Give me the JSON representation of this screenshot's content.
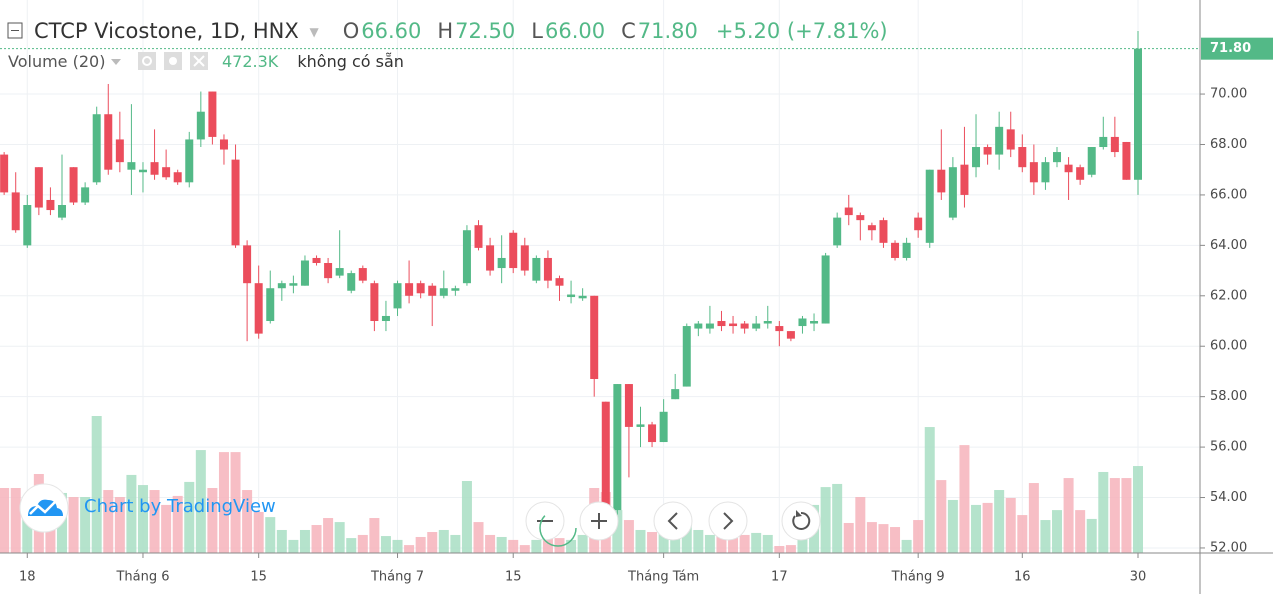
{
  "chart_data": {
    "type": "candlestick",
    "title": "CTCP Vicostone, 1D, HNX",
    "ohlc": [
      {
        "key": "O",
        "value": "66.60"
      },
      {
        "key": "H",
        "value": "72.50"
      },
      {
        "key": "L",
        "value": "66.00"
      },
      {
        "key": "C",
        "value": "71.80"
      }
    ],
    "change": "+5.20 (+7.81%)",
    "volume_name": "Volume (20)",
    "volume_last_label": "472.3K",
    "volume_note": "không có sẵn",
    "watermark": "Chart by TradingView",
    "up_color": "#53b987",
    "down_color": "#eb4d5c",
    "volume_up_color": "#a8dec3",
    "volume_down_color": "#f6b3bb",
    "grid": true,
    "categories": [
      null,
      null,
      "18",
      null,
      null,
      null,
      null,
      null,
      null,
      null,
      null,
      null,
      "Tháng 6",
      null,
      null,
      null,
      null,
      null,
      null,
      null,
      null,
      null,
      "15",
      null,
      null,
      null,
      null,
      null,
      null,
      null,
      null,
      null,
      null,
      null,
      "Tháng 7",
      null,
      null,
      null,
      null,
      null,
      null,
      null,
      null,
      null,
      "15",
      null,
      null,
      null,
      null,
      null,
      null,
      null,
      null,
      null,
      null,
      null,
      null,
      "Tháng Tám",
      null,
      null,
      null,
      null,
      null,
      null,
      null,
      null,
      null,
      "17",
      null,
      null,
      null,
      null,
      null,
      null,
      null,
      null,
      null,
      null,
      null,
      "Tháng 9",
      null,
      null,
      null,
      null,
      null,
      null,
      null,
      null,
      "16",
      null,
      null,
      null,
      null,
      null,
      null,
      null,
      null,
      null,
      "30"
    ],
    "open": [
      67.6,
      66.1,
      64.0,
      67.1,
      65.8,
      65.1,
      67.1,
      65.7,
      66.5,
      69.2,
      68.2,
      67.0,
      66.9,
      67.3,
      67.1,
      66.9,
      66.5,
      68.2,
      70.1,
      68.2,
      67.4,
      64.0,
      62.5,
      61.0,
      62.3,
      62.4,
      62.4,
      63.5,
      63.3,
      62.8,
      62.2,
      63.1,
      62.5,
      61.0,
      61.5,
      62.5,
      62.5,
      62.4,
      62.0,
      62.2,
      62.5,
      64.8,
      64.0,
      63.1,
      64.5,
      64.0,
      62.6,
      63.5,
      62.7,
      61.95,
      61.9,
      62.0,
      57.8,
      53.5,
      58.5,
      56.8,
      56.9,
      56.2,
      57.9,
      58.4,
      60.7,
      60.7,
      61.0,
      60.9,
      60.9,
      60.7,
      60.9,
      60.8,
      60.6,
      60.8,
      60.9,
      60.9,
      64.0,
      65.5,
      65.2,
      64.8,
      65.0,
      64.1,
      63.5,
      65.1,
      64.1,
      67.0,
      65.1,
      67.2,
      67.1,
      67.9,
      67.6,
      68.6,
      67.9,
      67.3,
      66.5,
      67.3,
      67.2,
      67.1,
      66.8,
      67.9,
      68.3,
      68.1,
      66.6
    ],
    "high": [
      67.7,
      66.9,
      66.0,
      67.1,
      66.3,
      67.6,
      67.1,
      66.5,
      69.5,
      70.4,
      69.3,
      69.6,
      67.3,
      68.6,
      67.8,
      67.0,
      68.5,
      70.1,
      70.1,
      68.4,
      68.0,
      64.2,
      63.2,
      63.0,
      62.6,
      62.8,
      63.6,
      63.6,
      63.5,
      64.6,
      63.0,
      63.2,
      62.6,
      61.8,
      62.6,
      63.4,
      62.6,
      62.5,
      63.0,
      62.4,
      64.8,
      65.0,
      64.3,
      64.4,
      64.6,
      64.3,
      63.6,
      63.8,
      62.8,
      62.6,
      62.3,
      62.0,
      57.8,
      58.5,
      58.5,
      57.6,
      57.0,
      57.9,
      58.9,
      60.9,
      61.0,
      61.6,
      61.4,
      61.2,
      61.0,
      61.2,
      61.6,
      61.0,
      60.6,
      61.2,
      61.3,
      63.7,
      65.3,
      66.0,
      65.3,
      64.9,
      65.1,
      64.2,
      64.3,
      65.3,
      67.0,
      68.6,
      67.5,
      68.7,
      69.2,
      68.0,
      69.3,
      69.3,
      68.4,
      68.0,
      67.5,
      67.9,
      67.5,
      67.2,
      67.9,
      69.1,
      69.1,
      68.1,
      72.5
    ],
    "low": [
      66.0,
      64.5,
      63.9,
      65.2,
      65.2,
      65.0,
      65.6,
      65.6,
      66.4,
      66.8,
      66.9,
      66.0,
      66.1,
      66.6,
      66.6,
      66.4,
      66.3,
      67.9,
      68.0,
      67.2,
      63.9,
      60.2,
      60.3,
      60.9,
      61.8,
      62.1,
      62.4,
      63.2,
      62.5,
      62.7,
      62.1,
      62.5,
      60.6,
      60.6,
      61.2,
      61.7,
      61.9,
      60.8,
      61.9,
      62.0,
      62.4,
      63.8,
      62.8,
      62.5,
      62.9,
      62.8,
      62.5,
      62.3,
      61.8,
      61.7,
      61.8,
      58.0,
      52.8,
      53.3,
      54.8,
      56.0,
      56.0,
      56.2,
      57.9,
      58.4,
      60.4,
      60.5,
      60.6,
      60.5,
      60.5,
      60.6,
      60.7,
      60.0,
      60.2,
      60.5,
      60.6,
      60.9,
      63.9,
      64.8,
      64.2,
      64.2,
      63.9,
      63.4,
      63.4,
      64.3,
      63.9,
      65.8,
      65.0,
      65.5,
      66.7,
      67.2,
      67.0,
      67.5,
      66.9,
      66.0,
      66.2,
      67.1,
      65.8,
      66.4,
      66.7,
      67.8,
      67.5,
      66.6,
      66.0
    ],
    "close": [
      66.1,
      64.6,
      65.6,
      65.5,
      65.4,
      65.6,
      65.7,
      66.3,
      69.2,
      67.0,
      67.3,
      67.3,
      67.0,
      66.8,
      66.7,
      66.5,
      68.2,
      69.3,
      68.3,
      67.8,
      64.0,
      62.5,
      60.5,
      62.3,
      62.5,
      62.5,
      63.4,
      63.3,
      62.7,
      63.1,
      62.9,
      62.6,
      61.0,
      61.2,
      62.5,
      62.0,
      62.1,
      62.0,
      62.3,
      62.3,
      64.6,
      63.9,
      63.0,
      63.5,
      63.1,
      63.0,
      63.5,
      62.6,
      62.4,
      62.05,
      62.0,
      58.7,
      53.1,
      58.5,
      56.8,
      56.9,
      56.2,
      57.4,
      58.3,
      60.8,
      60.9,
      60.9,
      60.8,
      60.8,
      60.7,
      60.9,
      61.0,
      60.6,
      60.3,
      61.1,
      61.0,
      63.6,
      65.1,
      65.2,
      65.0,
      64.6,
      64.1,
      63.5,
      64.1,
      64.6,
      67.0,
      66.1,
      67.1,
      66.0,
      67.9,
      67.6,
      68.7,
      67.8,
      67.1,
      66.5,
      67.3,
      67.7,
      66.9,
      66.6,
      67.9,
      68.3,
      67.7,
      66.6,
      71.8
    ],
    "volume": [
      353000,
      353000,
      304000,
      429000,
      304000,
      326000,
      304000,
      304000,
      744000,
      342000,
      304000,
      424000,
      369000,
      342000,
      261000,
      310000,
      386000,
      559000,
      353000,
      548000,
      548000,
      342000,
      223000,
      195000,
      125000,
      71000,
      125000,
      152000,
      190000,
      168000,
      81000,
      98000,
      190000,
      92000,
      71000,
      43000,
      87000,
      114000,
      125000,
      98000,
      391000,
      168000,
      98000,
      87000,
      71000,
      43000,
      71000,
      98000,
      81000,
      71000,
      98000,
      353000,
      331000,
      233000,
      179000,
      125000,
      114000,
      152000,
      98000,
      152000,
      125000,
      98000,
      114000,
      81000,
      98000,
      109000,
      98000,
      38000,
      43000,
      125000,
      261000,
      358000,
      375000,
      163000,
      304000,
      168000,
      157000,
      141000,
      71000,
      179000,
      684000,
      396000,
      288000,
      586000,
      261000,
      272000,
      342000,
      299000,
      206000,
      380000,
      179000,
      233000,
      407000,
      233000,
      185000,
      440000,
      407000,
      407000,
      472300
    ],
    "ylim": [
      51.8,
      73.73
    ],
    "yticks": [
      {
        "value": 52,
        "label": "52.00"
      },
      {
        "value": 54,
        "label": "54.00"
      },
      {
        "value": 56,
        "label": "56.00"
      },
      {
        "value": 58,
        "label": "58.00"
      },
      {
        "value": 60,
        "label": "60.00"
      },
      {
        "value": 62,
        "label": "62.00"
      },
      {
        "value": 64,
        "label": "64.00"
      },
      {
        "value": 66,
        "label": "66.00"
      },
      {
        "value": 68,
        "label": "68.00"
      },
      {
        "value": 70,
        "label": "70.00"
      }
    ],
    "last_price": {
      "value": 71.8,
      "label": "71.80"
    }
  }
}
